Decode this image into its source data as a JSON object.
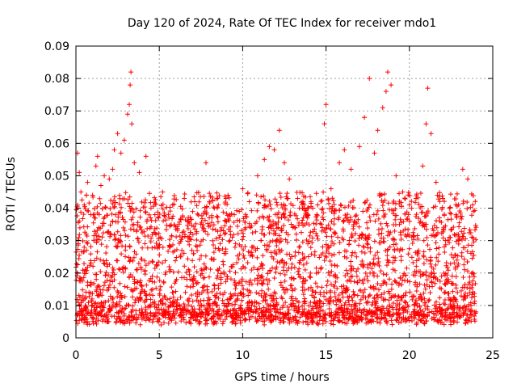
{
  "chart_data": {
    "type": "scatter",
    "title": "Day 120 of 2024, Rate Of TEC Index for receiver mdo1",
    "xlabel": "GPS time / hours",
    "ylabel": "ROTI / TECUs",
    "xlim": [
      0,
      25
    ],
    "ylim": [
      0,
      0.09
    ],
    "x_ticks": [
      "0",
      "5",
      "10",
      "15",
      "20",
      "25"
    ],
    "y_ticks": [
      "0",
      "0.01",
      "0.02",
      "0.03",
      "0.04",
      "0.05",
      "0.06",
      "0.07",
      "0.08",
      "0.09"
    ],
    "grid": true,
    "marker": "plus",
    "series": [
      {
        "color": "#ff0000",
        "points": [
          [
            0.1,
            0.057
          ],
          [
            0.2,
            0.051
          ],
          [
            0.3,
            0.045
          ],
          [
            0.5,
            0.041
          ],
          [
            0.7,
            0.048
          ],
          [
            1.0,
            0.044
          ],
          [
            1.2,
            0.053
          ],
          [
            1.3,
            0.056
          ],
          [
            1.5,
            0.047
          ],
          [
            1.7,
            0.05
          ],
          [
            2.0,
            0.049
          ],
          [
            2.2,
            0.052
          ],
          [
            2.3,
            0.058
          ],
          [
            2.5,
            0.063
          ],
          [
            2.7,
            0.057
          ],
          [
            2.9,
            0.061
          ],
          [
            3.1,
            0.069
          ],
          [
            3.2,
            0.072
          ],
          [
            3.25,
            0.078
          ],
          [
            3.3,
            0.082
          ],
          [
            3.35,
            0.066
          ],
          [
            3.5,
            0.054
          ],
          [
            3.8,
            0.051
          ],
          [
            4.2,
            0.056
          ],
          [
            4.5,
            0.04
          ],
          [
            5.2,
            0.045
          ],
          [
            5.8,
            0.041
          ],
          [
            6.5,
            0.043
          ],
          [
            7.0,
            0.039
          ],
          [
            7.8,
            0.054
          ],
          [
            8.3,
            0.04
          ],
          [
            9.0,
            0.043
          ],
          [
            9.5,
            0.038
          ],
          [
            10.0,
            0.046
          ],
          [
            10.4,
            0.042
          ],
          [
            10.9,
            0.05
          ],
          [
            11.3,
            0.055
          ],
          [
            11.6,
            0.059
          ],
          [
            11.9,
            0.058
          ],
          [
            12.2,
            0.064
          ],
          [
            12.5,
            0.054
          ],
          [
            12.8,
            0.049
          ],
          [
            13.3,
            0.043
          ],
          [
            13.9,
            0.04
          ],
          [
            14.5,
            0.041
          ],
          [
            14.9,
            0.066
          ],
          [
            15.0,
            0.072
          ],
          [
            15.3,
            0.046
          ],
          [
            15.8,
            0.054
          ],
          [
            16.1,
            0.058
          ],
          [
            16.5,
            0.052
          ],
          [
            17.0,
            0.059
          ],
          [
            17.3,
            0.068
          ],
          [
            17.6,
            0.08
          ],
          [
            17.9,
            0.057
          ],
          [
            18.1,
            0.064
          ],
          [
            18.4,
            0.071
          ],
          [
            18.6,
            0.076
          ],
          [
            18.7,
            0.082
          ],
          [
            18.9,
            0.078
          ],
          [
            19.2,
            0.05
          ],
          [
            19.6,
            0.045
          ],
          [
            20.0,
            0.041
          ],
          [
            20.4,
            0.043
          ],
          [
            20.8,
            0.053
          ],
          [
            21.0,
            0.066
          ],
          [
            21.1,
            0.077
          ],
          [
            21.3,
            0.063
          ],
          [
            21.6,
            0.048
          ],
          [
            22.0,
            0.043
          ],
          [
            22.4,
            0.04
          ],
          [
            22.8,
            0.038
          ],
          [
            23.2,
            0.052
          ],
          [
            23.5,
            0.049
          ],
          [
            23.8,
            0.041
          ]
        ]
      }
    ]
  }
}
